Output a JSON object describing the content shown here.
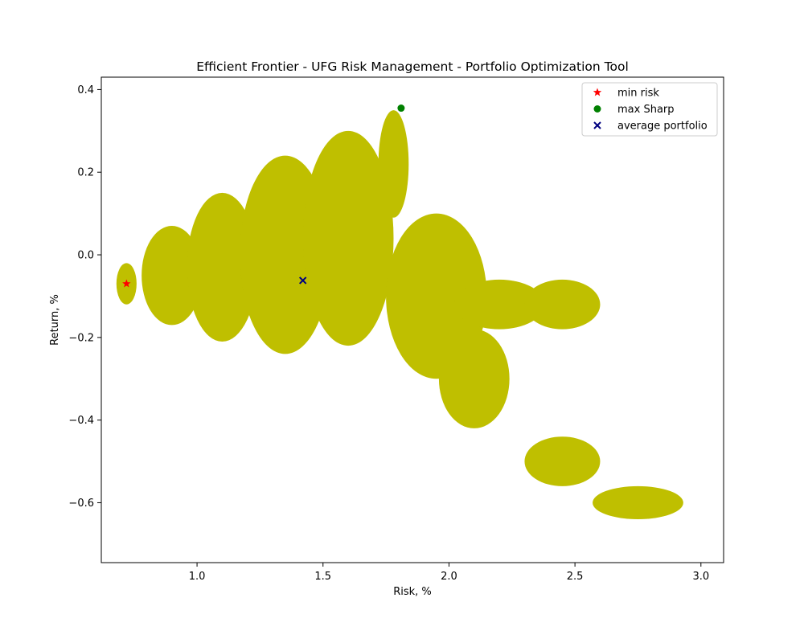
{
  "chart_data": {
    "type": "scatter",
    "title": "Efficient Frontier - UFG Risk Management - Portfolio Optimization Tool",
    "xlabel": "Risk, %",
    "ylabel": "Return, %",
    "xlim": [
      0.62,
      3.09
    ],
    "ylim": [
      -0.745,
      0.43
    ],
    "x_ticks": [
      {
        "value": 1.0,
        "label": "1.0"
      },
      {
        "value": 1.5,
        "label": "1.5"
      },
      {
        "value": 2.0,
        "label": "2.0"
      },
      {
        "value": 2.5,
        "label": "2.5"
      },
      {
        "value": 3.0,
        "label": "3.0"
      }
    ],
    "y_ticks": [
      {
        "value": 0.4,
        "label": "0.4"
      },
      {
        "value": 0.2,
        "label": "0.2"
      },
      {
        "value": 0.0,
        "label": "0.0"
      },
      {
        "value": -0.2,
        "label": "−0.2"
      },
      {
        "value": -0.4,
        "label": "−0.4"
      },
      {
        "value": -0.6,
        "label": "−0.6"
      }
    ],
    "grid": false,
    "legend_position": "top-right",
    "cloud_color": "#bfbf00",
    "portfolio_cloud": [
      {
        "x": 0.72,
        "y": -0.07,
        "rx": 0.04,
        "ry": 0.05
      },
      {
        "x": 0.9,
        "y": -0.05,
        "rx": 0.12,
        "ry": 0.12
      },
      {
        "x": 1.1,
        "y": -0.03,
        "rx": 0.14,
        "ry": 0.18
      },
      {
        "x": 1.35,
        "y": 0.0,
        "rx": 0.18,
        "ry": 0.24
      },
      {
        "x": 1.6,
        "y": 0.04,
        "rx": 0.18,
        "ry": 0.26
      },
      {
        "x": 1.78,
        "y": 0.22,
        "rx": 0.06,
        "ry": 0.13
      },
      {
        "x": 1.95,
        "y": -0.1,
        "rx": 0.2,
        "ry": 0.2
      },
      {
        "x": 2.2,
        "y": -0.12,
        "rx": 0.18,
        "ry": 0.06
      },
      {
        "x": 2.1,
        "y": -0.3,
        "rx": 0.14,
        "ry": 0.12
      },
      {
        "x": 2.45,
        "y": -0.5,
        "rx": 0.15,
        "ry": 0.06
      },
      {
        "x": 2.75,
        "y": -0.6,
        "rx": 0.18,
        "ry": 0.04
      },
      {
        "x": 2.45,
        "y": -0.12,
        "rx": 0.15,
        "ry": 0.06
      }
    ],
    "series": [
      {
        "name": "min risk",
        "marker": "star",
        "color": "#ff0000",
        "x": 0.72,
        "y": -0.07
      },
      {
        "name": "max Sharp",
        "marker": "circle",
        "color": "#008000",
        "x": 1.81,
        "y": 0.355
      },
      {
        "name": "average portfolio",
        "marker": "x",
        "color": "#000080",
        "x": 1.42,
        "y": -0.062
      }
    ]
  }
}
